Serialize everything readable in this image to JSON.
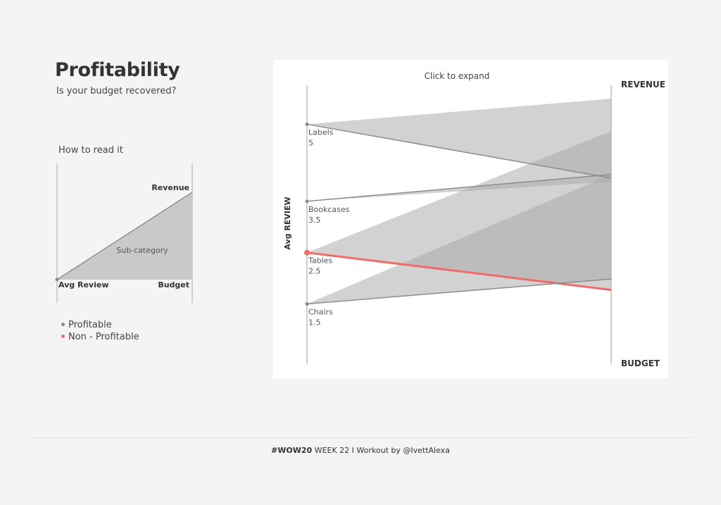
{
  "header": {
    "title": "Profitability",
    "subtitle": "Is your budget recovered?"
  },
  "how_to": {
    "heading": "How to read it",
    "revenue_label": "Revenue",
    "subcategory_label": "Sub-category",
    "avg_review_label": "Avg Review",
    "budget_label": "Budget"
  },
  "legend": {
    "profitable": "Profitable",
    "non_profitable": "Non - Profitable",
    "profitable_color": "#888888",
    "non_profitable_color": "#f26b6b"
  },
  "colors": {
    "fill_gray": "#a8a8a8",
    "line_gray": "#8c8c8c",
    "highlight": "#f26b6b",
    "background": "#f4f4f4"
  },
  "chart_data": {
    "type": "area",
    "title": "Click to expand",
    "ylabel": "Avg REVIEW",
    "top_axis_label": "REVENUE",
    "bottom_axis_label": "BUDGET",
    "review_range": [
      1,
      5.5
    ],
    "right_scale_range": [
      0,
      1
    ],
    "series": [
      {
        "name": "Labels",
        "avg_review": 5,
        "revenue": 1.0,
        "budget": 0.656,
        "profitable": true
      },
      {
        "name": "Bookcases",
        "avg_review": 3.5,
        "revenue": 0.641,
        "budget": 0.672,
        "profitable": true
      },
      {
        "name": "Tables",
        "avg_review": 2.5,
        "revenue": 0.859,
        "budget": 0.172,
        "profitable": false
      },
      {
        "name": "Chairs",
        "avg_review": 1.5,
        "revenue": 0.672,
        "budget": 0.219,
        "profitable": true
      }
    ]
  },
  "footer": {
    "hashtag": "#WOW20",
    "rest": " WEEK 22 I Workout by @IvettAlexa"
  }
}
